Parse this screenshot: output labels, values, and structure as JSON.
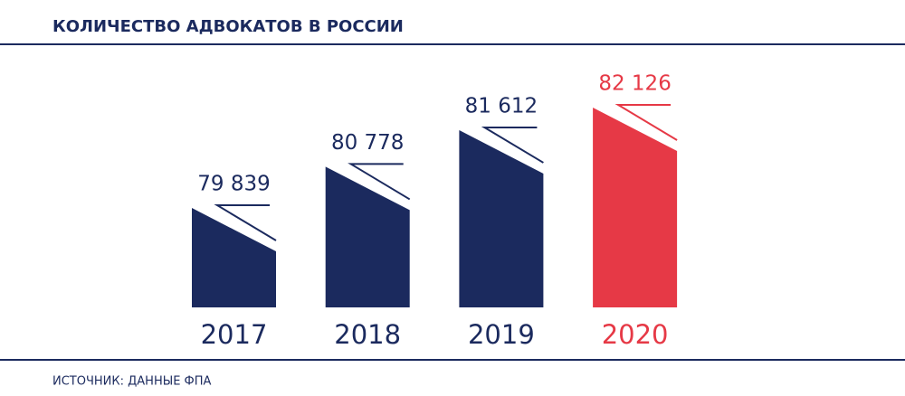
{
  "chart_data": {
    "type": "bar",
    "title": "КОЛИЧЕСТВО АДВОКАТОВ В РОССИИ",
    "source": "ИСТОЧНИК: ДАННЫЕ ФПА",
    "categories": [
      "2017",
      "2018",
      "2019",
      "2020"
    ],
    "values": [
      79839,
      80778,
      81612,
      82126
    ],
    "value_labels": [
      "79 839",
      "80 778",
      "81 612",
      "82 126"
    ],
    "colors": [
      "#1b2a5e",
      "#1b2a5e",
      "#1b2a5e",
      "#e63946"
    ]
  }
}
